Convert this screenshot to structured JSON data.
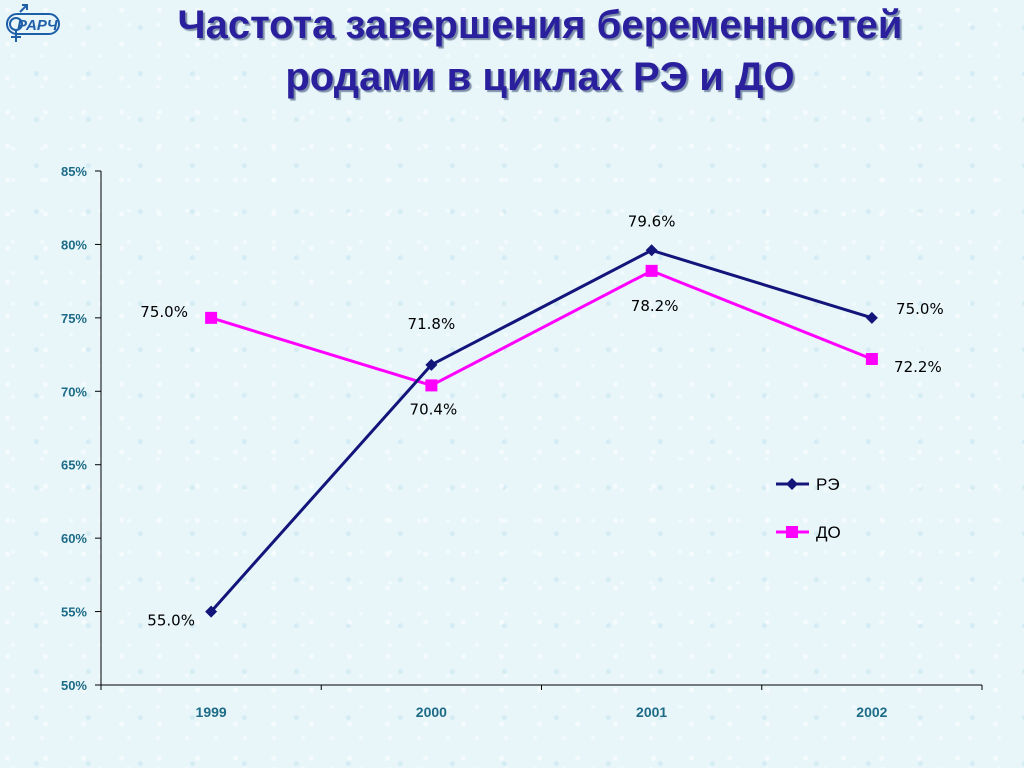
{
  "logo": {
    "text": "РАРЧ",
    "icon": "venus-mars-icon"
  },
  "title": {
    "line1": "Частота завершения беременностей",
    "line2": "родами в циклах РЭ и ДО"
  },
  "colors": {
    "title": "#2a1f9c",
    "series_re": "#14157a",
    "series_do": "#ff00ff",
    "axis_text": "#1d6b86"
  },
  "chart_data": {
    "type": "line",
    "x": [
      "1999",
      "2000",
      "2001",
      "2002"
    ],
    "ylim": [
      50,
      85
    ],
    "yticks": [
      50,
      55,
      60,
      65,
      70,
      75,
      80,
      85
    ],
    "ytick_labels": [
      "50%",
      "55%",
      "60%",
      "65%",
      "70%",
      "75%",
      "80%",
      "85%"
    ],
    "grid": false,
    "legend_position": "right",
    "series": [
      {
        "name": "РЭ",
        "marker": "diamond",
        "color": "#14157a",
        "values": [
          55.0,
          71.8,
          79.6,
          75.0
        ],
        "labels": [
          "55.0%",
          "71.8%",
          "79.6%",
          "75.0%"
        ]
      },
      {
        "name": "ДО",
        "marker": "square",
        "color": "#ff00ff",
        "values": [
          75.0,
          70.4,
          78.2,
          72.2
        ],
        "labels": [
          "75.0%",
          "70.4%",
          "78.2%",
          "72.2%"
        ]
      }
    ]
  }
}
